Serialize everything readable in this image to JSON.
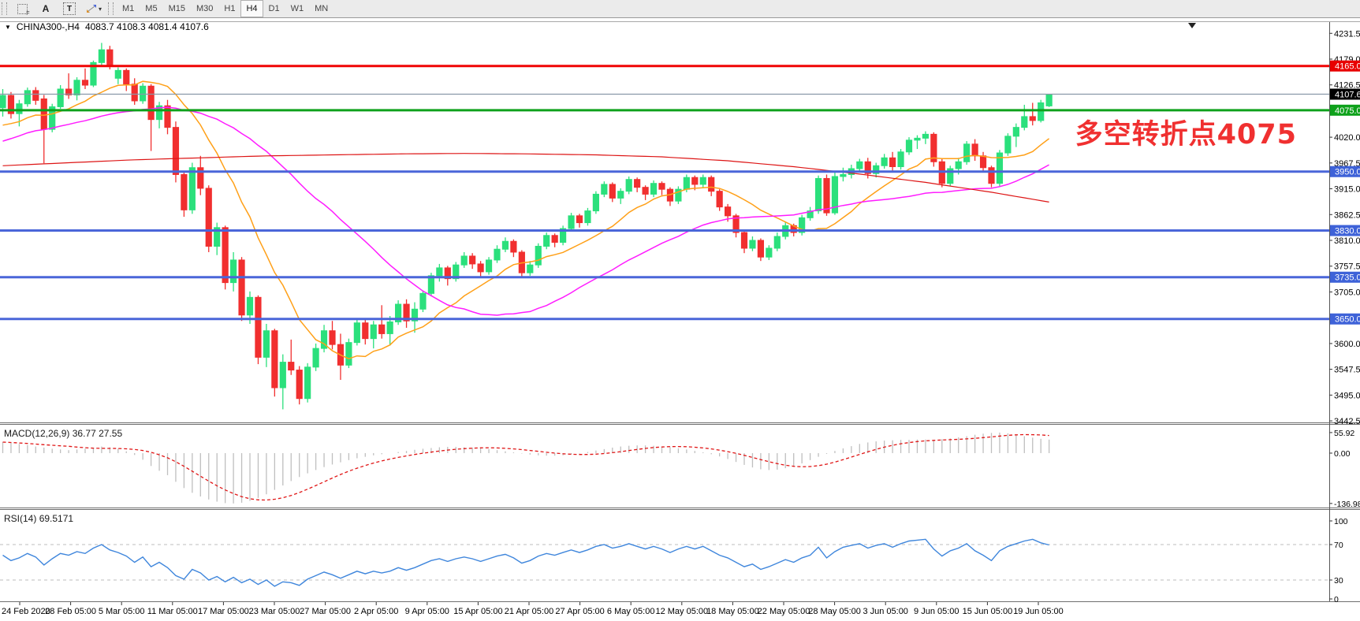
{
  "toolbar": {
    "icons": {
      "grid_glyph": "F",
      "font_glyph": "A",
      "text_glyph": "T",
      "caret_glyph": "▾"
    },
    "timeframes": [
      "M1",
      "M5",
      "M15",
      "M30",
      "H1",
      "H4",
      "D1",
      "W1",
      "MN"
    ],
    "active_timeframe": "H4"
  },
  "chart_header": {
    "collapse_glyph": "▼",
    "symbol": "CHINA300-,H4",
    "ohlc": "4083.7 4108.3 4081.4 4107.6"
  },
  "annotation": {
    "text": "多空转折点4075",
    "color": "#f03030"
  },
  "chart_data": [
    {
      "type": "candlestick",
      "symbol": "CHINA300-",
      "timeframe": "H4",
      "open": 4083.7,
      "high": 4108.3,
      "low": 4081.4,
      "close": 4107.6,
      "ylim": [
        3439.4,
        4254.4
      ],
      "up_color": "#2be07c",
      "down_color": "#f12f2f",
      "y_ticks": [
        4231.5,
        4179.0,
        4126.5,
        4020.0,
        3967.5,
        3915.0,
        3862.5,
        3810.0,
        3757.5,
        3705.0,
        3600.0,
        3547.5,
        3495.0,
        3442.5
      ],
      "price_badges": [
        {
          "label": "4165.0",
          "price": 4165.0,
          "color": "#e80000"
        },
        {
          "label": "4107.6",
          "price": 4107.6,
          "color": "#000000"
        },
        {
          "label": "4075.0",
          "price": 4075.0,
          "color": "#0ea11b"
        },
        {
          "label": "3950.0",
          "price": 3950.0,
          "color": "#3e62d8"
        },
        {
          "label": "3830.0",
          "price": 3830.0,
          "color": "#3e62d8"
        },
        {
          "label": "3735.0",
          "price": 3735.0,
          "color": "#3e62d8"
        },
        {
          "label": "3650.0",
          "price": 3650.0,
          "color": "#3e62d8"
        }
      ],
      "hlines": [
        {
          "price": 4165.0,
          "color": "#f00505",
          "width": 3
        },
        {
          "price": 4107.6,
          "color": "#8a98a8",
          "width": 1.2
        },
        {
          "price": 4075.0,
          "color": "#0ea11b",
          "width": 3
        },
        {
          "price": 3950.0,
          "color": "#4a66d9",
          "width": 3
        },
        {
          "price": 3830.0,
          "color": "#4a66d9",
          "width": 3
        },
        {
          "price": 3735.0,
          "color": "#4a66d9",
          "width": 3
        },
        {
          "price": 3650.0,
          "color": "#4a66d9",
          "width": 3
        }
      ],
      "ma_lines": [
        {
          "name": "fast",
          "period": 12,
          "color": "#ffa018"
        },
        {
          "name": "medium",
          "period": 34,
          "color": "#ff1cff"
        }
      ],
      "slow_ma": {
        "color": "#dd1414",
        "anchor_bars": [
          0,
          8,
          16,
          24,
          32,
          40,
          48,
          56,
          64,
          72,
          80,
          88,
          96,
          104,
          112,
          120,
          127
        ],
        "anchor_values": [
          3962,
          3968,
          3974,
          3978,
          3982,
          3984,
          3986,
          3987,
          3986,
          3984,
          3980,
          3972,
          3960,
          3945,
          3928,
          3908,
          3888
        ]
      },
      "ma_seed": [
        3870,
        3875,
        3880,
        3885,
        3890,
        3885,
        3880,
        3875,
        3870,
        3875,
        3880,
        3885,
        3890,
        3895,
        3890,
        3885,
        3880,
        3875,
        3880,
        3885,
        3890,
        3895,
        3900,
        3895,
        3890,
        3885,
        3880,
        3885,
        3890,
        3895,
        3900,
        3905,
        3950,
        3960,
        3970,
        3980,
        3990,
        4000,
        4010,
        4020,
        4030,
        4040,
        4045,
        4050,
        4040,
        4030,
        4020,
        4010,
        4000,
        4010,
        4020,
        4030,
        4040,
        4020,
        4030,
        4040,
        4050,
        4055,
        4045,
        4035,
        4040,
        4045
      ],
      "x_labels": [
        "24 Feb 2020",
        "28 Feb 05:00",
        "5 Mar 05:00",
        "11 Mar 05:00",
        "17 Mar 05:00",
        "23 Mar 05:00",
        "27 Mar 05:00",
        "2 Apr 05:00",
        "9 Apr 05:00",
        "15 Apr 05:00",
        "21 Apr 05:00",
        "27 Apr 05:00",
        "6 May 05:00",
        "12 May 05:00",
        "18 May 05:00",
        "22 May 05:00",
        "28 May 05:00",
        "3 Jun 05:00",
        "9 Jun 05:00",
        "15 Jun 05:00",
        "19 Jun 05:00"
      ],
      "candles": [
        [
          4080,
          4118,
          4062,
          4105
        ],
        [
          4105,
          4112,
          4058,
          4068
        ],
        [
          4068,
          4096,
          4042,
          4088
        ],
        [
          4088,
          4121,
          4082,
          4115
        ],
        [
          4115,
          4122,
          4086,
          4095
        ],
        [
          4098,
          4106,
          3967,
          4036
        ],
        [
          4036,
          4088,
          4030,
          4082
        ],
        [
          4082,
          4126,
          4078,
          4118
        ],
        [
          4118,
          4150,
          4098,
          4106
        ],
        [
          4106,
          4142,
          4095,
          4136
        ],
        [
          4136,
          4160,
          4118,
          4126
        ],
        [
          4126,
          4176,
          4122,
          4172
        ],
        [
          4172,
          4212,
          4165,
          4198
        ],
        [
          4198,
          4206,
          4158,
          4166
        ],
        [
          4140,
          4162,
          4128,
          4156
        ],
        [
          4156,
          4160,
          4114,
          4128
        ],
        [
          4128,
          4140,
          4086,
          4094
        ],
        [
          4094,
          4130,
          4088,
          4124
        ],
        [
          4124,
          4128,
          3992,
          4056
        ],
        [
          4056,
          4092,
          4038,
          4084
        ],
        [
          4084,
          4096,
          4026,
          4040
        ],
        [
          4040,
          4052,
          3928,
          3944
        ],
        [
          3944,
          3950,
          3858,
          3872
        ],
        [
          3872,
          3968,
          3864,
          3958
        ],
        [
          3958,
          3982,
          3902,
          3916
        ],
        [
          3916,
          3922,
          3786,
          3798
        ],
        [
          3798,
          3846,
          3780,
          3836
        ],
        [
          3836,
          3840,
          3710,
          3724
        ],
        [
          3724,
          3786,
          3706,
          3770
        ],
        [
          3770,
          3776,
          3646,
          3658
        ],
        [
          3658,
          3706,
          3640,
          3694
        ],
        [
          3694,
          3698,
          3558,
          3572
        ],
        [
          3572,
          3640,
          3552,
          3626
        ],
        [
          3626,
          3630,
          3492,
          3510
        ],
        [
          3510,
          3578,
          3466,
          3562
        ],
        [
          3562,
          3608,
          3536,
          3546
        ],
        [
          3546,
          3554,
          3476,
          3488
        ],
        [
          3488,
          3560,
          3480,
          3552
        ],
        [
          3552,
          3600,
          3544,
          3590
        ],
        [
          3590,
          3638,
          3582,
          3626
        ],
        [
          3626,
          3646,
          3588,
          3598
        ],
        [
          3598,
          3620,
          3526,
          3556
        ],
        [
          3556,
          3610,
          3550,
          3602
        ],
        [
          3602,
          3652,
          3596,
          3642
        ],
        [
          3642,
          3650,
          3598,
          3610
        ],
        [
          3610,
          3646,
          3590,
          3638
        ],
        [
          3638,
          3678,
          3610,
          3620
        ],
        [
          3620,
          3656,
          3596,
          3644
        ],
        [
          3644,
          3688,
          3638,
          3680
        ],
        [
          3680,
          3690,
          3632,
          3646
        ],
        [
          3646,
          3684,
          3622,
          3670
        ],
        [
          3670,
          3708,
          3664,
          3702
        ],
        [
          3702,
          3744,
          3696,
          3738
        ],
        [
          3738,
          3762,
          3726,
          3754
        ],
        [
          3754,
          3758,
          3718,
          3732
        ],
        [
          3732,
          3766,
          3726,
          3760
        ],
        [
          3760,
          3786,
          3754,
          3778
        ],
        [
          3778,
          3784,
          3752,
          3762
        ],
        [
          3762,
          3768,
          3734,
          3746
        ],
        [
          3746,
          3776,
          3740,
          3770
        ],
        [
          3770,
          3800,
          3764,
          3792
        ],
        [
          3792,
          3816,
          3786,
          3808
        ],
        [
          3808,
          3812,
          3776,
          3786
        ],
        [
          3786,
          3790,
          3736,
          3744
        ],
        [
          3744,
          3768,
          3738,
          3760
        ],
        [
          3760,
          3804,
          3754,
          3798
        ],
        [
          3798,
          3826,
          3792,
          3820
        ],
        [
          3820,
          3824,
          3796,
          3806
        ],
        [
          3806,
          3840,
          3800,
          3834
        ],
        [
          3834,
          3866,
          3828,
          3860
        ],
        [
          3860,
          3864,
          3836,
          3846
        ],
        [
          3846,
          3876,
          3840,
          3870
        ],
        [
          3870,
          3910,
          3864,
          3904
        ],
        [
          3904,
          3930,
          3898,
          3924
        ],
        [
          3924,
          3928,
          3888,
          3896
        ],
        [
          3896,
          3916,
          3884,
          3910
        ],
        [
          3910,
          3940,
          3904,
          3934
        ],
        [
          3934,
          3938,
          3908,
          3918
        ],
        [
          3918,
          3922,
          3892,
          3904
        ],
        [
          3904,
          3932,
          3898,
          3926
        ],
        [
          3926,
          3930,
          3902,
          3914
        ],
        [
          3914,
          3918,
          3880,
          3890
        ],
        [
          3890,
          3920,
          3884,
          3914
        ],
        [
          3914,
          3944,
          3908,
          3938
        ],
        [
          3938,
          3942,
          3912,
          3924
        ],
        [
          3924,
          3944,
          3918,
          3938
        ],
        [
          3938,
          3942,
          3900,
          3910
        ],
        [
          3910,
          3914,
          3870,
          3878
        ],
        [
          3878,
          3884,
          3848,
          3860
        ],
        [
          3860,
          3864,
          3816,
          3826
        ],
        [
          3826,
          3832,
          3784,
          3794
        ],
        [
          3794,
          3818,
          3788,
          3810
        ],
        [
          3810,
          3814,
          3768,
          3776
        ],
        [
          3776,
          3800,
          3770,
          3794
        ],
        [
          3794,
          3826,
          3788,
          3818
        ],
        [
          3818,
          3848,
          3812,
          3840
        ],
        [
          3840,
          3844,
          3818,
          3826
        ],
        [
          3826,
          3862,
          3820,
          3856
        ],
        [
          3856,
          3878,
          3850,
          3870
        ],
        [
          3870,
          3942,
          3864,
          3936
        ],
        [
          3936,
          3944,
          3860,
          3866
        ],
        [
          3866,
          3948,
          3862,
          3940
        ],
        [
          3940,
          3958,
          3930,
          3944
        ],
        [
          3944,
          3964,
          3936,
          3956
        ],
        [
          3956,
          3976,
          3950,
          3970
        ],
        [
          3970,
          3978,
          3936,
          3946
        ],
        [
          3946,
          3968,
          3938,
          3962
        ],
        [
          3962,
          3986,
          3956,
          3978
        ],
        [
          3978,
          3990,
          3950,
          3960
        ],
        [
          3960,
          3996,
          3954,
          3990
        ],
        [
          3990,
          4020,
          3984,
          4014
        ],
        [
          4014,
          4024,
          3996,
          4018
        ],
        [
          4018,
          4032,
          4006,
          4026
        ],
        [
          4026,
          4030,
          3960,
          3970
        ],
        [
          3970,
          3976,
          3918,
          3926
        ],
        [
          3926,
          3962,
          3920,
          3956
        ],
        [
          3956,
          3978,
          3944,
          3970
        ],
        [
          3970,
          4012,
          3964,
          4006
        ],
        [
          4006,
          4016,
          3972,
          3982
        ],
        [
          3982,
          3990,
          3950,
          3958
        ],
        [
          3958,
          3962,
          3918,
          3926
        ],
        [
          3926,
          3994,
          3920,
          3988
        ],
        [
          3988,
          4028,
          3982,
          4022
        ],
        [
          4022,
          4048,
          4000,
          4040
        ],
        [
          4040,
          4086,
          4034,
          4062
        ],
        [
          4062,
          4090,
          4044,
          4054
        ],
        [
          4054,
          4096,
          4050,
          4090
        ],
        [
          4083.7,
          4108.3,
          4081.4,
          4107.6
        ]
      ]
    },
    {
      "type": "macd",
      "label": "MACD(12,26,9)",
      "value_main": "36.77",
      "value_signal": "27.55",
      "ylim": [
        -148,
        75
      ],
      "y_ticks": [
        {
          "label": "55.92",
          "v": 55.92
        },
        {
          "label": "0.00",
          "v": 0.0
        },
        {
          "label": "-136.98",
          "v": -136.98
        }
      ],
      "hist_color": "#bfbfbf",
      "signal_color": "#e01616",
      "signal_period": 9,
      "histogram": [
        30,
        28,
        25,
        22,
        18,
        15,
        12,
        10,
        8,
        10,
        12,
        15,
        18,
        16,
        12,
        5,
        -5,
        -18,
        -35,
        -48,
        -60,
        -78,
        -95,
        -108,
        -118,
        -126,
        -132,
        -136,
        -137,
        -135,
        -130,
        -122,
        -112,
        -100,
        -88,
        -76,
        -65,
        -55,
        -46,
        -38,
        -31,
        -25,
        -19,
        -14,
        -10,
        -6,
        -3,
        0,
        3,
        6,
        9,
        12,
        14,
        16,
        17,
        17,
        16,
        15,
        13,
        11,
        8,
        5,
        2,
        -1,
        -4,
        -6,
        -7,
        -7,
        -6,
        -4,
        -1,
        3,
        7,
        11,
        15,
        18,
        20,
        21,
        21,
        20,
        18,
        16,
        13,
        10,
        6,
        2,
        -3,
        -9,
        -16,
        -24,
        -32,
        -39,
        -44,
        -46,
        -45,
        -41,
        -35,
        -28,
        -19,
        -10,
        -2,
        6,
        13,
        19,
        25,
        29,
        32,
        34,
        35,
        36,
        36,
        37,
        37,
        36,
        38,
        40,
        43,
        46,
        50,
        53,
        55,
        55.92,
        54,
        50,
        46,
        42,
        39,
        36.77
      ]
    },
    {
      "type": "rsi",
      "label": "RSI(14)",
      "value": "69.5171",
      "ylim": [
        0,
        100
      ],
      "levels": [
        70,
        30
      ],
      "y_ticks": [
        {
          "label": "100",
          "v": 100
        },
        {
          "label": "70",
          "v": 70
        },
        {
          "label": "30",
          "v": 30
        },
        {
          "label": "0",
          "v": 0
        }
      ],
      "line_color": "#3f86dc",
      "level_color": "#bdbdbd",
      "values": [
        58,
        52,
        55,
        60,
        56,
        47,
        54,
        60,
        58,
        62,
        60,
        66,
        70,
        64,
        61,
        57,
        50,
        56,
        45,
        50,
        44,
        35,
        31,
        42,
        38,
        30,
        34,
        28,
        33,
        27,
        31,
        25,
        30,
        23,
        28,
        27,
        24,
        31,
        35,
        39,
        36,
        32,
        36,
        40,
        37,
        40,
        38,
        40,
        44,
        41,
        44,
        48,
        52,
        54,
        51,
        54,
        56,
        54,
        51,
        54,
        57,
        59,
        55,
        49,
        52,
        57,
        60,
        58,
        61,
        64,
        61,
        64,
        68,
        70,
        66,
        68,
        71,
        68,
        65,
        68,
        65,
        61,
        65,
        68,
        65,
        68,
        63,
        58,
        55,
        50,
        45,
        48,
        42,
        45,
        49,
        53,
        50,
        55,
        58,
        67,
        55,
        62,
        67,
        69,
        71,
        66,
        69,
        71,
        67,
        71,
        74,
        75,
        76,
        65,
        57,
        63,
        66,
        71,
        63,
        58,
        52,
        63,
        68,
        71,
        74,
        76,
        72,
        69.52
      ]
    }
  ]
}
